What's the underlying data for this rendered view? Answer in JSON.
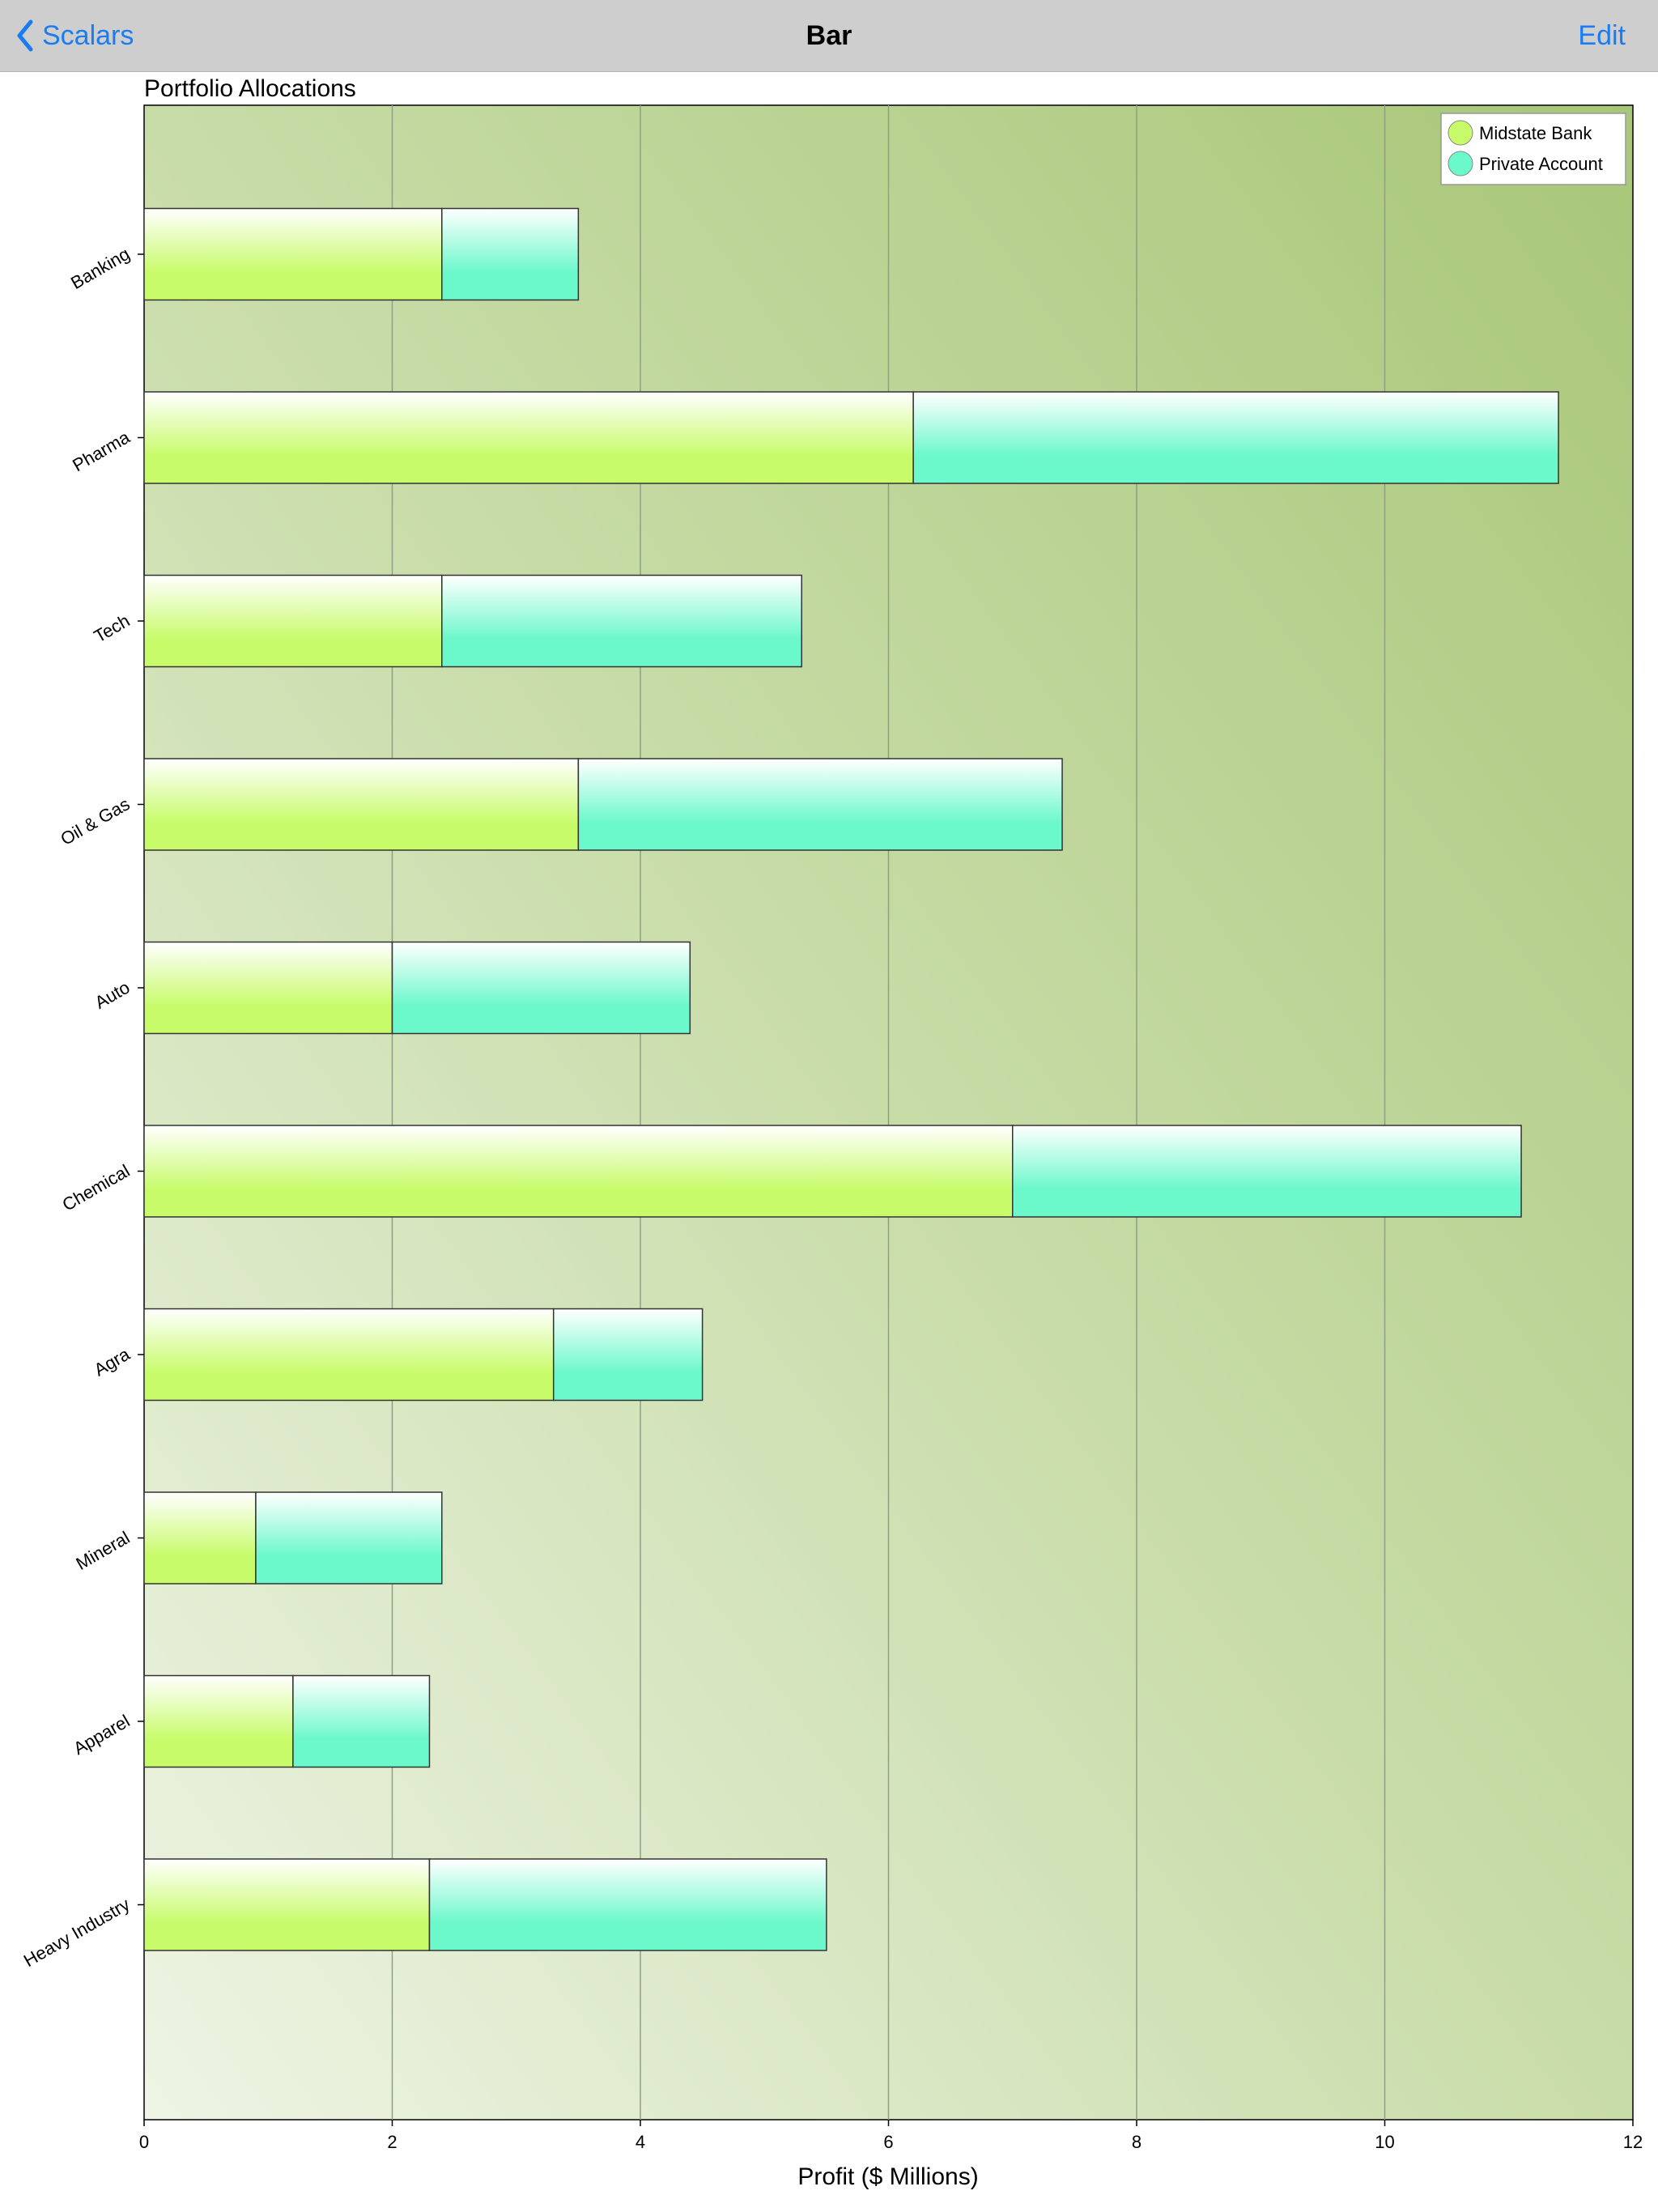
{
  "navbar": {
    "back_label": "Scalars",
    "title": "Bar",
    "edit_label": "Edit",
    "back_icon": "chevron-left-icon",
    "accent_color": "#1a7cf2"
  },
  "chart_data": {
    "type": "bar",
    "orientation": "horizontal",
    "stacked": true,
    "title": "Portfolio Allocations",
    "xlabel": "Profit ($ Millions)",
    "ylabel": "",
    "xlim": [
      0,
      12
    ],
    "x_ticks": [
      "0",
      "2",
      "4",
      "6",
      "8",
      "10",
      "12"
    ],
    "grid": true,
    "legend_position": "top-right",
    "categories": [
      "Banking",
      "Pharma",
      "Tech",
      "Oil & Gas",
      "Auto",
      "Chemical",
      "Agra",
      "Mineral",
      "Apparel",
      "Heavy Industry"
    ],
    "series": [
      {
        "name": "Midstate Bank",
        "color": "#c8fb6a",
        "values": [
          2.4,
          6.2,
          2.4,
          3.5,
          2.0,
          7.0,
          3.3,
          0.9,
          1.2,
          2.3
        ]
      },
      {
        "name": "Private Account",
        "color": "#6bf8cb",
        "values": [
          1.1,
          5.2,
          2.9,
          3.9,
          2.4,
          4.1,
          1.2,
          1.5,
          1.1,
          3.2
        ]
      }
    ]
  }
}
